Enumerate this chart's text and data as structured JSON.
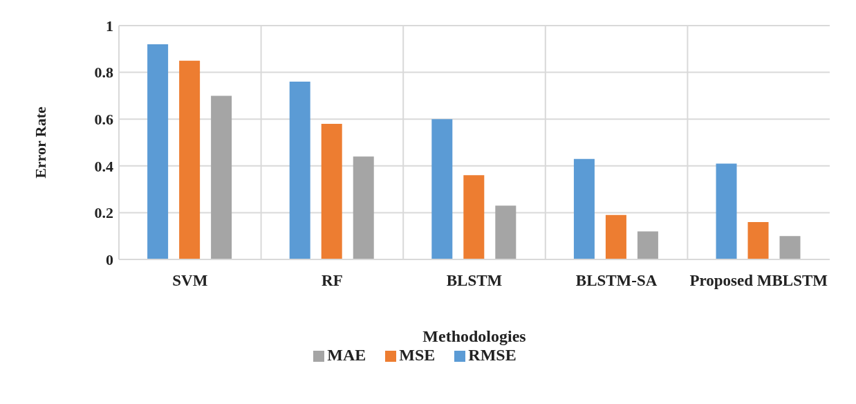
{
  "chart_data": {
    "type": "bar",
    "xlabel": "Methodologies",
    "ylabel": "Error Rate",
    "categories": [
      "SVM",
      "RF",
      "BLSTM",
      "BLSTM-SA",
      "Proposed MBLSTM"
    ],
    "series": [
      {
        "name": "RMSE",
        "color": "#5b9bd5",
        "values": [
          0.92,
          0.76,
          0.6,
          0.43,
          0.41
        ]
      },
      {
        "name": "MSE",
        "color": "#ed7d31",
        "values": [
          0.85,
          0.58,
          0.36,
          0.19,
          0.16
        ]
      },
      {
        "name": "MAE",
        "color": "#a5a5a5",
        "values": [
          0.7,
          0.44,
          0.23,
          0.12,
          0.1
        ]
      }
    ],
    "ylim": [
      0,
      1
    ],
    "yticks": [
      0,
      0.2,
      0.4,
      0.6,
      0.8,
      1
    ],
    "grid": true,
    "legend": "bottom"
  }
}
